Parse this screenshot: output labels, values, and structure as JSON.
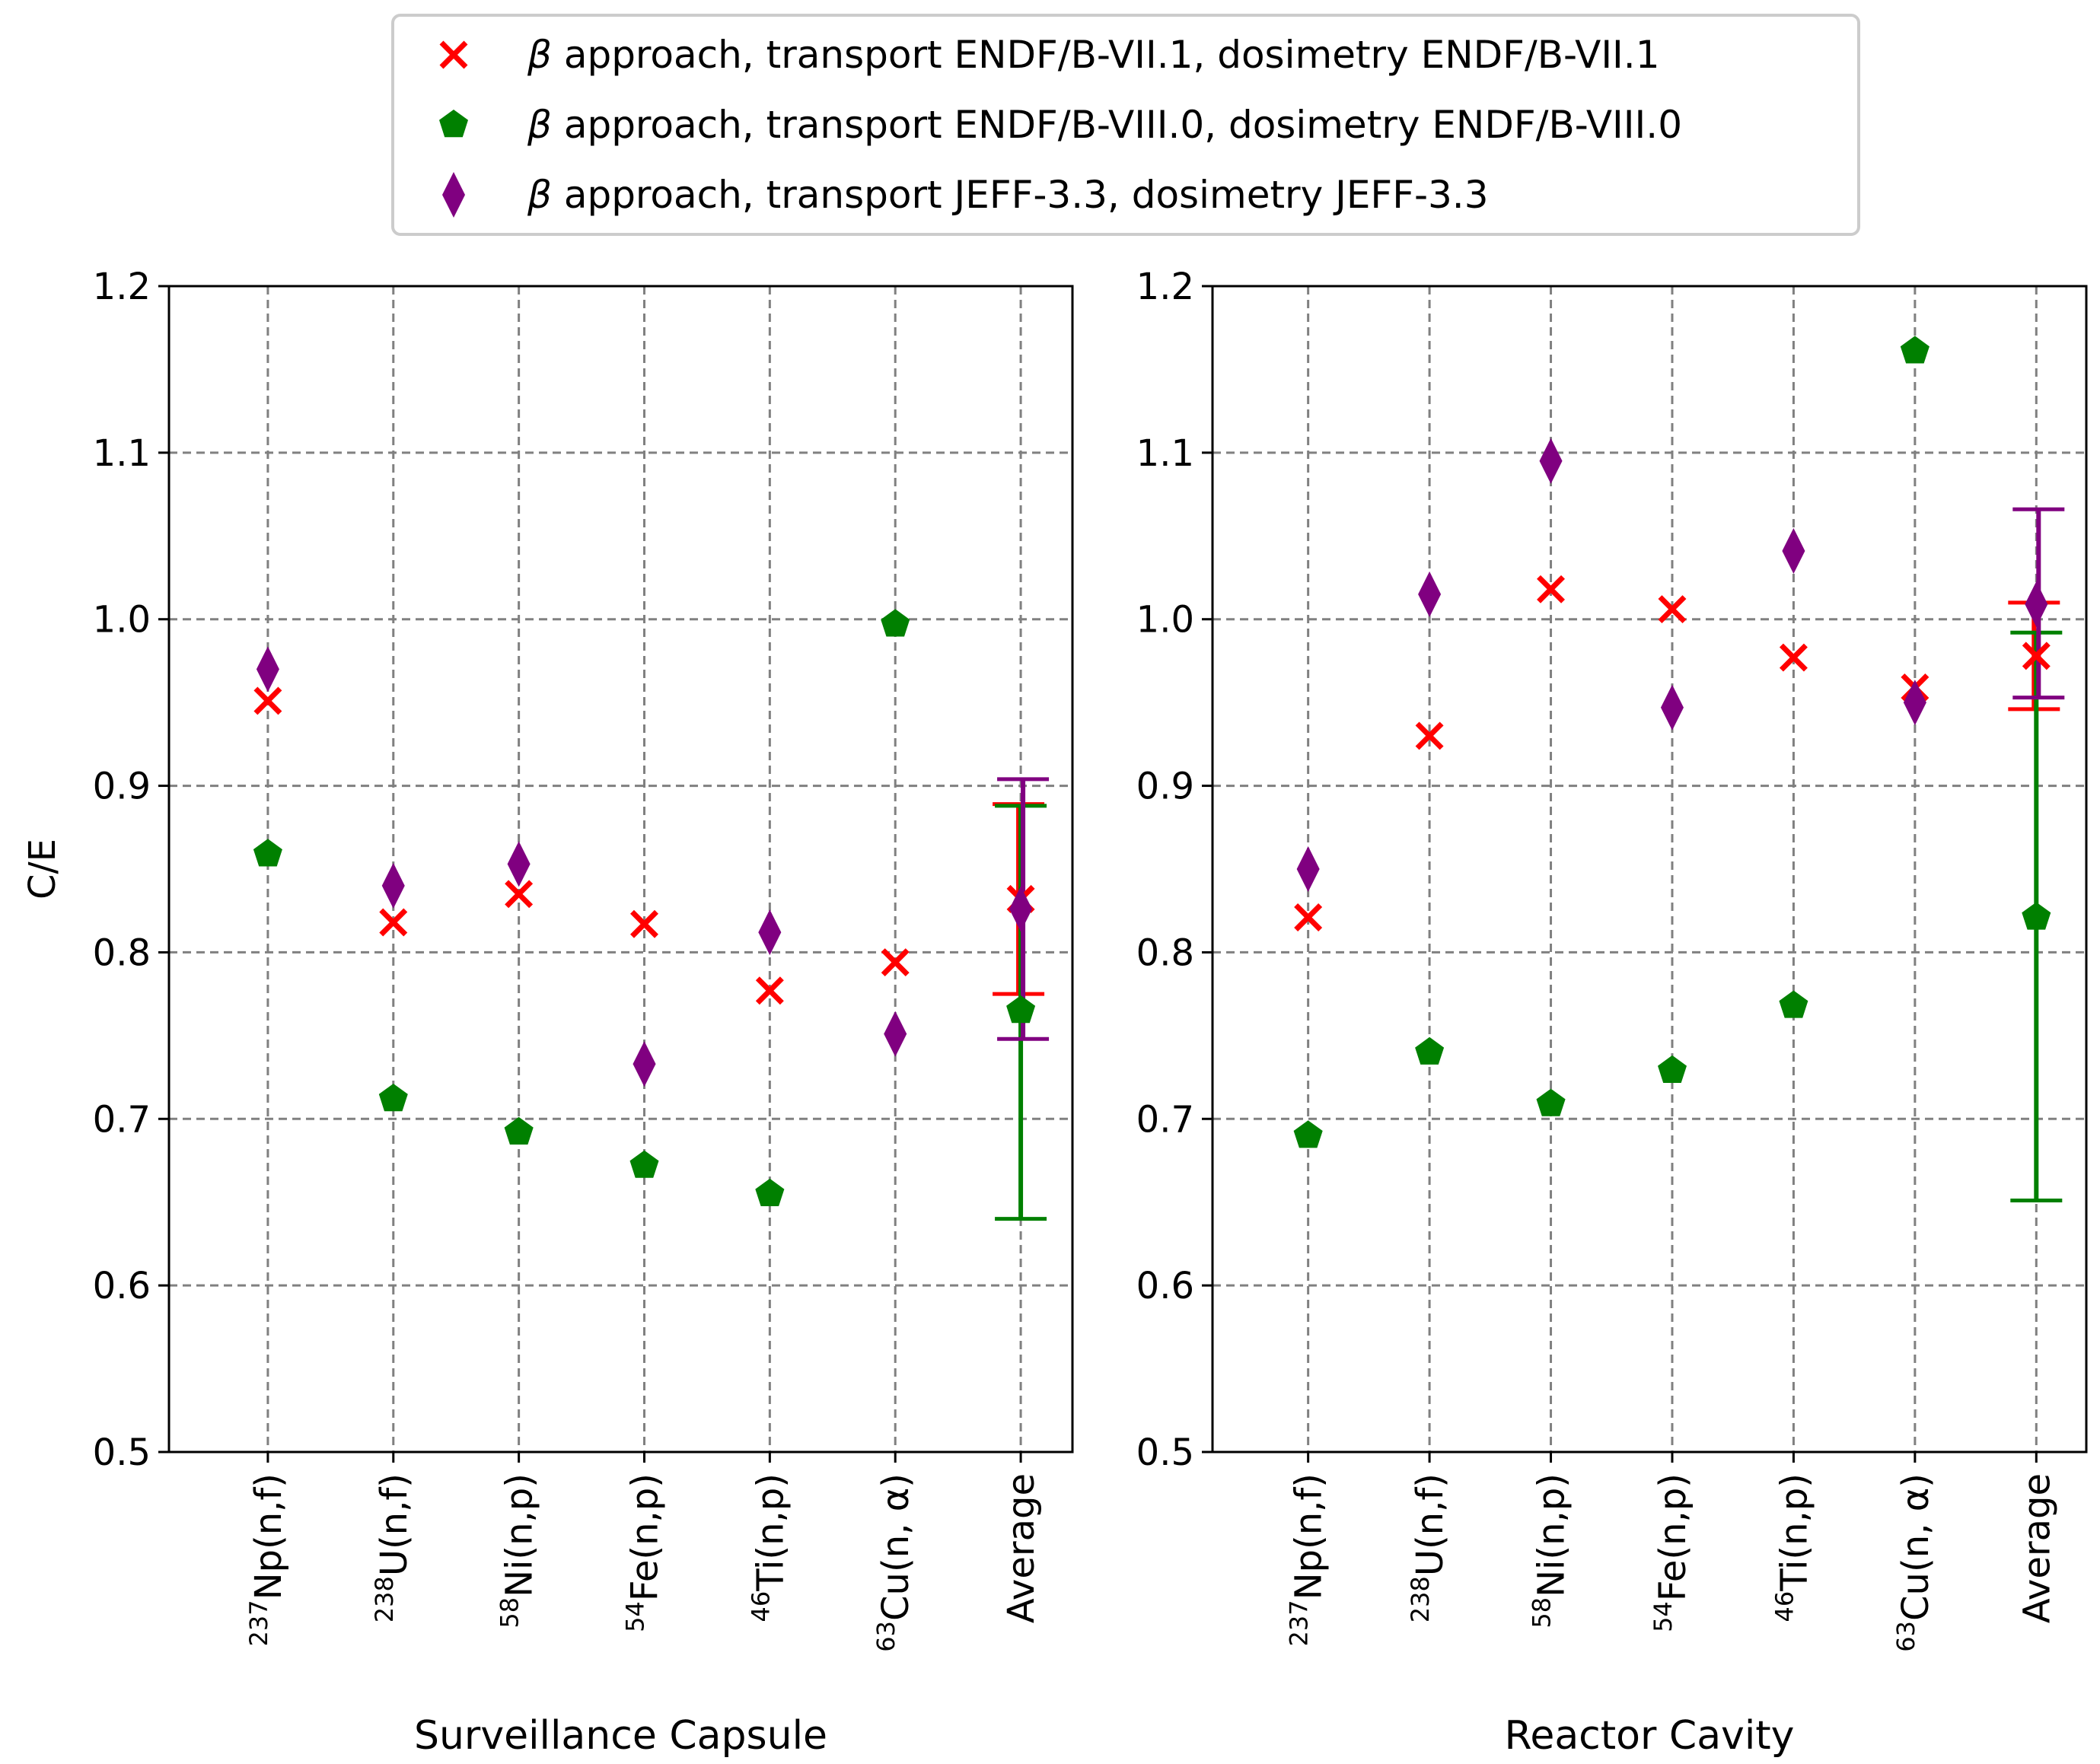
{
  "legend": {
    "entries": [
      {
        "symbol": "β",
        "text": " approach, transport ENDF/B-VII.1, dosimetry ENDF/B-VII.1",
        "color": "#ff0000",
        "marker": "x-icon"
      },
      {
        "symbol": "β",
        "text": " approach, transport ENDF/B-VIII.0, dosimetry ENDF/B-VIII.0",
        "color": "#008000",
        "marker": "pentagon-icon"
      },
      {
        "symbol": "β",
        "text": " approach, transport JEFF-3.3, dosimetry JEFF-3.3",
        "color": "#800080",
        "marker": "diamond-icon"
      }
    ]
  },
  "chart_data": [
    {
      "type": "scatter",
      "title": "",
      "xlabel": "Surveillance Capsule",
      "ylabel": "C/E",
      "ylim": [
        0.5,
        1.2
      ],
      "yticks": [
        0.5,
        0.6,
        0.7,
        0.8,
        0.9,
        1.0,
        1.1,
        1.2
      ],
      "ytick_labels": [
        "0.5",
        "0.6",
        "0.7",
        "0.8",
        "0.9",
        "1.0",
        "1.1",
        "1.2"
      ],
      "grid": true,
      "categories": [
        {
          "sup": "237",
          "base": "Np(n,f)"
        },
        {
          "sup": "238",
          "base": "U(n,f)"
        },
        {
          "sup": "58",
          "base": "Ni(n,p)"
        },
        {
          "sup": "54",
          "base": "Fe(n,p)"
        },
        {
          "sup": "46",
          "base": "Ti(n,p)"
        },
        {
          "sup": "63",
          "base": "Cu(n, α)"
        },
        {
          "sup": "",
          "base": "Average"
        }
      ],
      "series": [
        {
          "name": "ENDF/B-VII.1",
          "values": [
            0.951,
            0.818,
            0.835,
            0.817,
            0.777,
            0.794,
            0.832
          ],
          "error": [
            null,
            null,
            null,
            null,
            null,
            null,
            [
              0.775,
              0.889
            ]
          ]
        },
        {
          "name": "ENDF/B-VIII.0",
          "values": [
            0.859,
            0.712,
            0.692,
            0.672,
            0.655,
            0.997,
            0.765
          ],
          "error": [
            null,
            null,
            null,
            null,
            null,
            null,
            [
              0.64,
              0.888
            ]
          ]
        },
        {
          "name": "JEFF-3.3",
          "values": [
            0.97,
            0.84,
            0.853,
            0.733,
            0.812,
            0.751,
            0.826
          ],
          "error": [
            null,
            null,
            null,
            null,
            null,
            null,
            [
              0.748,
              0.904
            ]
          ]
        }
      ]
    },
    {
      "type": "scatter",
      "title": "",
      "xlabel": "Reactor Cavity",
      "ylabel": "",
      "ylim": [
        0.5,
        1.2
      ],
      "yticks": [
        0.5,
        0.6,
        0.7,
        0.8,
        0.9,
        1.0,
        1.1,
        1.2
      ],
      "ytick_labels": [
        "0.5",
        "0.6",
        "0.7",
        "0.8",
        "0.9",
        "1.0",
        "1.1",
        "1.2"
      ],
      "grid": true,
      "categories": [
        {
          "sup": "237",
          "base": "Np(n,f)"
        },
        {
          "sup": "238",
          "base": "U(n,f)"
        },
        {
          "sup": "58",
          "base": "Ni(n,p)"
        },
        {
          "sup": "54",
          "base": "Fe(n,p)"
        },
        {
          "sup": "46",
          "base": "Ti(n,p)"
        },
        {
          "sup": "63",
          "base": "Cu(n, α)"
        },
        {
          "sup": "",
          "base": "Average"
        }
      ],
      "series": [
        {
          "name": "ENDF/B-VII.1",
          "values": [
            0.821,
            0.93,
            1.018,
            1.006,
            0.977,
            0.959,
            0.978
          ],
          "error": [
            null,
            null,
            null,
            null,
            null,
            null,
            [
              0.946,
              1.01
            ]
          ]
        },
        {
          "name": "ENDF/B-VIII.0",
          "values": [
            0.69,
            0.74,
            0.709,
            0.729,
            0.768,
            1.161,
            0.821
          ],
          "error": [
            null,
            null,
            null,
            null,
            null,
            null,
            [
              0.651,
              0.992
            ]
          ]
        },
        {
          "name": "JEFF-3.3",
          "values": [
            0.85,
            1.015,
            1.095,
            0.947,
            1.041,
            0.95,
            1.009
          ],
          "error": [
            null,
            null,
            null,
            null,
            null,
            null,
            [
              0.953,
              1.066
            ]
          ]
        }
      ]
    }
  ]
}
